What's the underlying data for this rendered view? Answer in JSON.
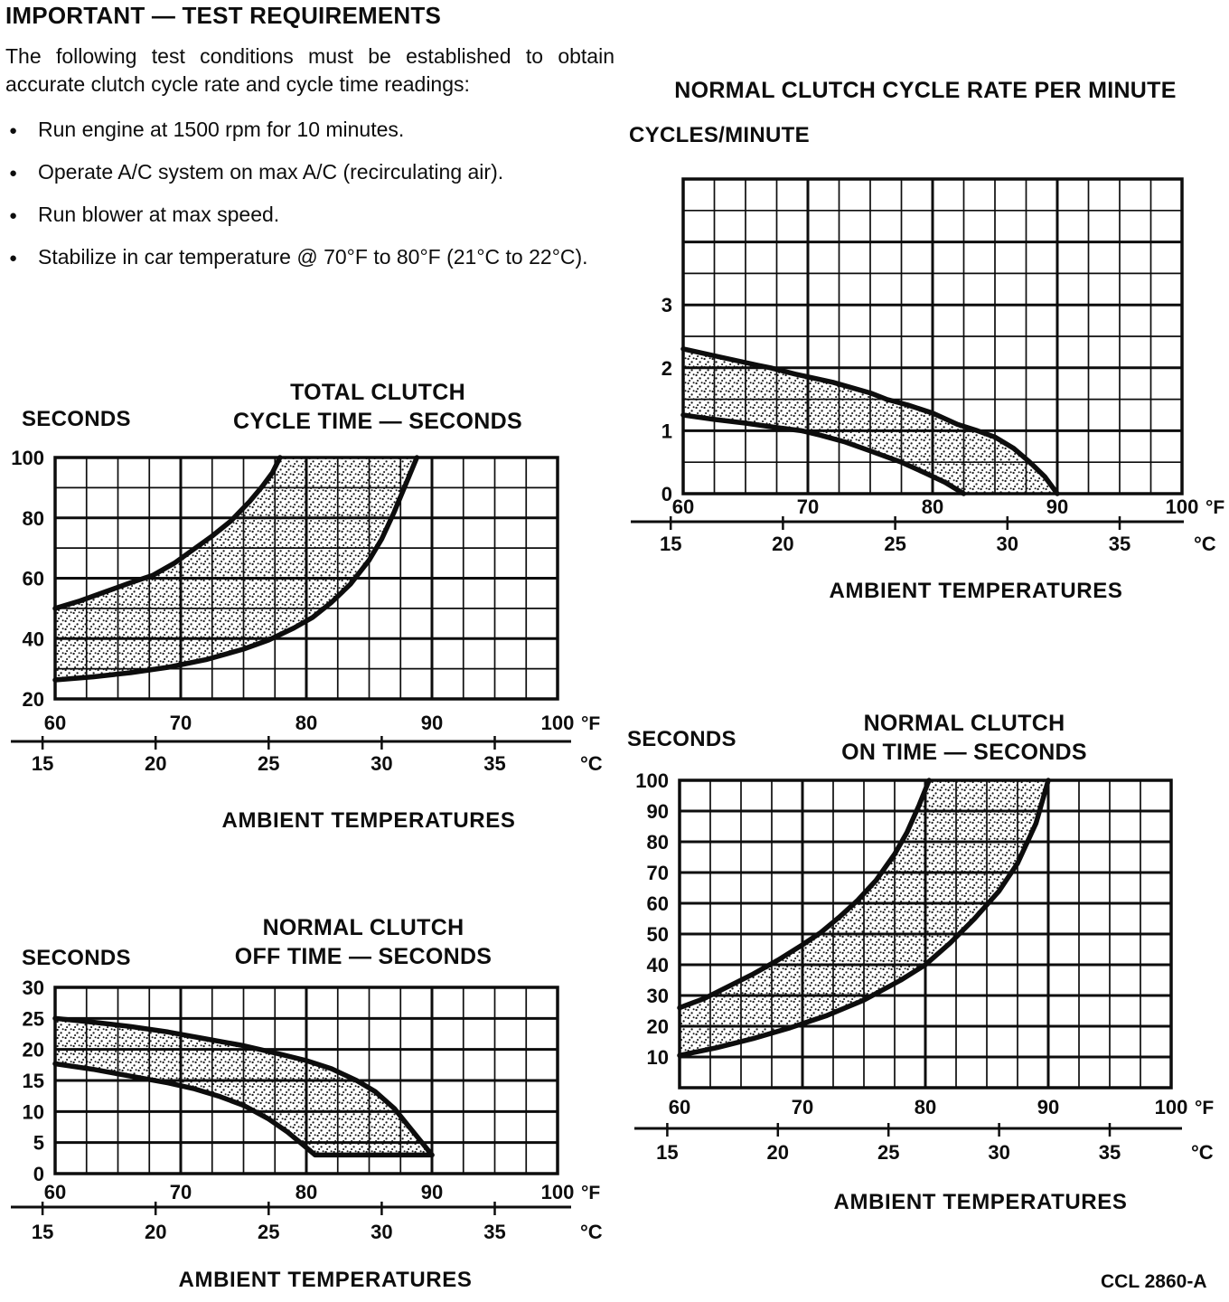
{
  "page": {
    "heading": "IMPORTANT — TEST REQUIREMENTS",
    "intro": "The following test conditions must be established to obtain accurate clutch cycle rate and cycle time readings:",
    "bullet_char": "●",
    "bullets": [
      "Run engine at 1500 rpm for 10 minutes.",
      "Operate A/C system on max A/C (recirculating air).",
      "Run blower at max speed.",
      "Stabilize in car temperature @ 70°F to 80°F (21°C to 22°C)."
    ],
    "footer_code": "CCL 2860-A",
    "ink_color": "#0d0d0d"
  },
  "chart_data": [
    {
      "id": "cycle_rate",
      "type": "area",
      "title_lines": [
        "NORMAL CLUTCH CYCLE RATE PER MINUTE"
      ],
      "y_axis_label": "CYCLES/MINUTE",
      "caption": "AMBIENT TEMPERATURES",
      "x_unit": "°F",
      "c_unit": "°C",
      "x_range_f": [
        60,
        100
      ],
      "x_major_ticks_f": [
        60,
        70,
        80,
        90,
        100
      ],
      "x_minor_step_f": 2.5,
      "c_ticks": [
        15,
        20,
        25,
        30,
        35
      ],
      "y_range": [
        0,
        5
      ],
      "y_grid_step": 0.5,
      "y_labeled_ticks": [
        3,
        2,
        1,
        0
      ],
      "grid": true,
      "legend": "none",
      "series": [
        {
          "name": "upper_limit",
          "points": [
            [
              60,
              2.3
            ],
            [
              63,
              2.17
            ],
            [
              66,
              2.04
            ],
            [
              67,
              2.0
            ],
            [
              69,
              1.9
            ],
            [
              72,
              1.77
            ],
            [
              75,
              1.6
            ],
            [
              76.3,
              1.5
            ],
            [
              78,
              1.41
            ],
            [
              80,
              1.28
            ],
            [
              82,
              1.1
            ],
            [
              83.6,
              1.0
            ],
            [
              85,
              0.9
            ],
            [
              86.5,
              0.72
            ],
            [
              87.8,
              0.5
            ],
            [
              89,
              0.27
            ],
            [
              90,
              0
            ]
          ]
        },
        {
          "name": "lower_limit",
          "points": [
            [
              60,
              1.25
            ],
            [
              62.5,
              1.18
            ],
            [
              65,
              1.12
            ],
            [
              67.5,
              1.05
            ],
            [
              69.5,
              1.0
            ],
            [
              71,
              0.93
            ],
            [
              73,
              0.82
            ],
            [
              75,
              0.68
            ],
            [
              77.5,
              0.5
            ],
            [
              79.5,
              0.32
            ],
            [
              81,
              0.18
            ],
            [
              82.5,
              0
            ]
          ]
        }
      ]
    },
    {
      "id": "total_cycle_time",
      "type": "area",
      "title_lines": [
        "TOTAL CLUTCH",
        "CYCLE TIME — SECONDS"
      ],
      "y_axis_label": "SECONDS",
      "caption": "AMBIENT TEMPERATURES",
      "x_unit": "°F",
      "c_unit": "°C",
      "x_range_f": [
        60,
        100
      ],
      "x_major_ticks_f": [
        60,
        70,
        80,
        90,
        100
      ],
      "x_minor_step_f": 2.5,
      "c_ticks": [
        15,
        20,
        25,
        30,
        35
      ],
      "y_range": [
        20,
        100
      ],
      "y_grid_step": 10,
      "y_labeled_ticks": [
        100,
        80,
        60,
        40,
        20
      ],
      "grid": true,
      "legend": "none",
      "series": [
        {
          "name": "upper_limit",
          "points": [
            [
              60,
              50
            ],
            [
              62,
              52.5
            ],
            [
              64,
              55.5
            ],
            [
              66,
              58.5
            ],
            [
              67.8,
              61
            ],
            [
              69.5,
              65
            ],
            [
              71,
              69.5
            ],
            [
              72.5,
              74
            ],
            [
              74,
              79
            ],
            [
              75.5,
              85.5
            ],
            [
              76.5,
              90.5
            ],
            [
              77.3,
              95
            ],
            [
              77.9,
              100
            ]
          ]
        },
        {
          "name": "lower_limit",
          "points": [
            [
              60,
              26.3
            ],
            [
              63,
              27.3
            ],
            [
              66,
              28.7
            ],
            [
              69,
              30.5
            ],
            [
              72,
              33
            ],
            [
              75,
              36.5
            ],
            [
              77,
              39.5
            ],
            [
              79,
              43.5
            ],
            [
              80.5,
              47
            ],
            [
              82,
              52
            ],
            [
              83.5,
              58
            ],
            [
              85,
              66
            ],
            [
              86,
              73
            ],
            [
              87,
              82
            ],
            [
              88,
              92
            ],
            [
              88.8,
              100
            ]
          ]
        }
      ]
    },
    {
      "id": "off_time",
      "type": "area",
      "title_lines": [
        "NORMAL CLUTCH",
        "OFF TIME — SECONDS"
      ],
      "y_axis_label": "SECONDS",
      "caption": "AMBIENT TEMPERATURES",
      "x_unit": "°F",
      "c_unit": "°C",
      "x_range_f": [
        60,
        100
      ],
      "x_major_ticks_f": [
        60,
        70,
        80,
        90,
        100
      ],
      "x_minor_step_f": 2.5,
      "c_ticks": [
        15,
        20,
        25,
        30,
        35
      ],
      "y_range": [
        0,
        30
      ],
      "y_grid_step": 5,
      "y_labeled_ticks": [
        30,
        25,
        20,
        15,
        10,
        5,
        0
      ],
      "grid": true,
      "legend": "none",
      "series": [
        {
          "name": "upper_limit",
          "points": [
            [
              60,
              25
            ],
            [
              63,
              24.4
            ],
            [
              66,
              23.7
            ],
            [
              69,
              22.8
            ],
            [
              72,
              21.7
            ],
            [
              75,
              20.6
            ],
            [
              78,
              19.2
            ],
            [
              80,
              18.2
            ],
            [
              82,
              16.9
            ],
            [
              84,
              15
            ],
            [
              85.5,
              13.2
            ],
            [
              87,
              10.5
            ],
            [
              88,
              8
            ],
            [
              89,
              5.5
            ],
            [
              90,
              3
            ]
          ]
        },
        {
          "name": "lower_limit",
          "points": [
            [
              60,
              17.7
            ],
            [
              63,
              16.8
            ],
            [
              66,
              15.7
            ],
            [
              69,
              14.6
            ],
            [
              71,
              13.7
            ],
            [
              73,
              12.5
            ],
            [
              75,
              11
            ],
            [
              77,
              8.8
            ],
            [
              78.5,
              6.7
            ],
            [
              80,
              4.2
            ],
            [
              80.7,
              3
            ],
            [
              90,
              3
            ]
          ]
        }
      ]
    },
    {
      "id": "on_time",
      "type": "area",
      "title_lines": [
        "NORMAL CLUTCH",
        "ON TIME — SECONDS"
      ],
      "y_axis_label": "SECONDS",
      "caption": "AMBIENT TEMPERATURES",
      "x_unit": "°F",
      "c_unit": "°C",
      "x_range_f": [
        60,
        100
      ],
      "x_major_ticks_f": [
        60,
        70,
        80,
        90,
        100
      ],
      "x_minor_step_f": 2.5,
      "c_ticks": [
        15,
        20,
        25,
        30,
        35
      ],
      "y_range": [
        0,
        100
      ],
      "y_grid_step": 10,
      "y_labeled_ticks": [
        100,
        90,
        80,
        70,
        60,
        50,
        40,
        30,
        20,
        10
      ],
      "grid": true,
      "legend": "none",
      "series": [
        {
          "name": "upper_limit",
          "points": [
            [
              60,
              26
            ],
            [
              62,
              29
            ],
            [
              64,
              33
            ],
            [
              66,
              37
            ],
            [
              68,
              41.5
            ],
            [
              70,
              46.5
            ],
            [
              71.5,
              50.5
            ],
            [
              73,
              55.5
            ],
            [
              74.5,
              61
            ],
            [
              76,
              67.5
            ],
            [
              77.5,
              76
            ],
            [
              78.5,
              83
            ],
            [
              79.5,
              92
            ],
            [
              80.3,
              100
            ]
          ]
        },
        {
          "name": "lower_limit",
          "points": [
            [
              60,
              10.5
            ],
            [
              63,
              13
            ],
            [
              66,
              16
            ],
            [
              69,
              19.5
            ],
            [
              72,
              23.5
            ],
            [
              75,
              28.5
            ],
            [
              78,
              35
            ],
            [
              80,
              40
            ],
            [
              82,
              47
            ],
            [
              84,
              55
            ],
            [
              86,
              64
            ],
            [
              87.5,
              73
            ],
            [
              89,
              86
            ],
            [
              90,
              100
            ]
          ]
        }
      ]
    }
  ]
}
